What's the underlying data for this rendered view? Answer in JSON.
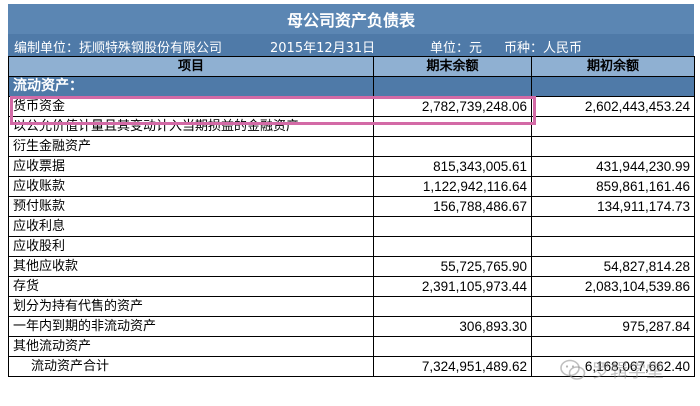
{
  "report": {
    "title": "母公司资产负债表",
    "company": "编制单位：抚顺特殊钢股份有限公司",
    "date": "2015年12月31日",
    "unit": "单位：元",
    "currency": "币种：人民币"
  },
  "table": {
    "headers": [
      "项目",
      "期末余额",
      "期初余额"
    ],
    "section": "流动资产：",
    "rows": [
      {
        "item": "货币资金",
        "end": "2,782,739,248.06",
        "begin": "2,602,443,453.24"
      },
      {
        "item": "以公允价值计量且其变动计入当期损益的金融资产",
        "end": "",
        "begin": ""
      },
      {
        "item": "衍生金融资产",
        "end": "",
        "begin": ""
      },
      {
        "item": "应收票据",
        "end": "815,343,005.61",
        "begin": "431,944,230.99"
      },
      {
        "item": "应收账款",
        "end": "1,122,942,116.64",
        "begin": "859,861,161.46"
      },
      {
        "item": "预付账款",
        "end": "156,788,486.67",
        "begin": "134,911,174.73"
      },
      {
        "item": "应收利息",
        "end": "",
        "begin": ""
      },
      {
        "item": "应收股利",
        "end": "",
        "begin": ""
      },
      {
        "item": "其他应收款",
        "end": "55,725,765.90",
        "begin": "54,827,814.28"
      },
      {
        "item": "存货",
        "end": "2,391,105,973.44",
        "begin": "2,083,104,539.86"
      },
      {
        "item": "划分为持有代售的资产",
        "end": "",
        "begin": ""
      },
      {
        "item": "一年内到期的非流动资产",
        "end": "306,893.30",
        "begin": "975,287.84"
      },
      {
        "item": "其他流动资产",
        "end": "",
        "begin": ""
      }
    ],
    "total": {
      "item": "流动资产合计",
      "end": "7,324,951,489.62",
      "begin": "6,168,067,662.40"
    }
  },
  "watermark": {
    "text": "罗辑学堂",
    "icon": "wechat-icon"
  },
  "colors": {
    "title_bg": "#5b86b3",
    "header_bg": "#8fb0d2",
    "highlight": "#d36aa6"
  }
}
